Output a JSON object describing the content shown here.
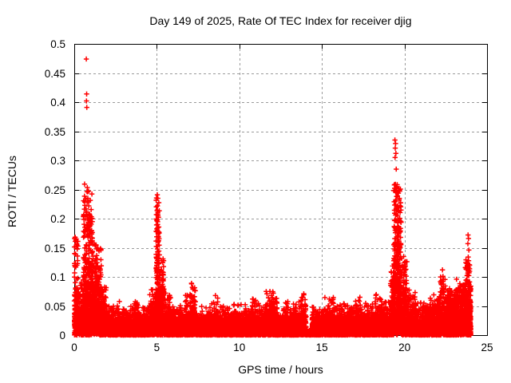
{
  "chart_data": {
    "type": "scatter",
    "title": "Day 149 of 2025, Rate Of TEC Index for receiver djig",
    "xlabel": "GPS time / hours",
    "ylabel": "ROTI / TECUs",
    "xlim": [
      0,
      25
    ],
    "ylim": [
      0,
      0.5
    ],
    "grid": true,
    "grid_style": "dashed",
    "legend": "none",
    "marker": "plus",
    "colors": {
      "points": "#ff0000",
      "grid": "#9a9a9a",
      "axis": "#000000",
      "text": "#000000",
      "background": "#ffffff"
    },
    "xticks": [
      {
        "v": 0,
        "label": "0"
      },
      {
        "v": 5,
        "label": "5"
      },
      {
        "v": 10,
        "label": "10"
      },
      {
        "v": 15,
        "label": "15"
      },
      {
        "v": 20,
        "label": "20"
      },
      {
        "v": 25,
        "label": "25"
      }
    ],
    "yticks": [
      {
        "v": 0,
        "label": "0"
      },
      {
        "v": 0.05,
        "label": "0.05"
      },
      {
        "v": 0.1,
        "label": "0.1"
      },
      {
        "v": 0.15,
        "label": "0.15"
      },
      {
        "v": 0.2,
        "label": "0.2"
      },
      {
        "v": 0.25,
        "label": "0.25"
      },
      {
        "v": 0.3,
        "label": "0.3"
      },
      {
        "v": 0.35,
        "label": "0.35"
      },
      {
        "v": 0.4,
        "label": "0.4"
      },
      {
        "v": 0.45,
        "label": "0.45"
      },
      {
        "v": 0.5,
        "label": "0.5"
      }
    ],
    "data_time_range_hours": [
      0,
      24
    ],
    "bin_format": [
      "t_start_hours",
      "t_end_hours",
      "envelope_max_roti",
      "density_points_per_0p01h",
      "spread_factor"
    ],
    "envelope_bins": [
      [
        0.0,
        0.25,
        0.17,
        7,
        3.0
      ],
      [
        0.25,
        0.55,
        0.1,
        6,
        4.0
      ],
      [
        0.55,
        1.1,
        0.26,
        9,
        2.8
      ],
      [
        1.1,
        1.65,
        0.16,
        8,
        3.2
      ],
      [
        1.65,
        2.0,
        0.09,
        7,
        4.0
      ],
      [
        2.0,
        2.55,
        0.055,
        6,
        4.5
      ],
      [
        2.55,
        2.8,
        0.065,
        6,
        4.5
      ],
      [
        2.8,
        3.6,
        0.05,
        6,
        4.5
      ],
      [
        3.6,
        4.0,
        0.06,
        6,
        4.5
      ],
      [
        4.0,
        4.55,
        0.05,
        6,
        4.5
      ],
      [
        4.55,
        4.95,
        0.08,
        6,
        4.0
      ],
      [
        4.95,
        5.15,
        0.24,
        10,
        2.2
      ],
      [
        5.15,
        5.45,
        0.14,
        7,
        3.2
      ],
      [
        5.45,
        5.85,
        0.075,
        6,
        4.0
      ],
      [
        5.85,
        6.7,
        0.055,
        6,
        4.5
      ],
      [
        6.7,
        7.0,
        0.07,
        6,
        4.2
      ],
      [
        7.0,
        7.35,
        0.09,
        6,
        3.5
      ],
      [
        7.35,
        8.3,
        0.05,
        6,
        4.5
      ],
      [
        8.3,
        8.7,
        0.065,
        6,
        4.5
      ],
      [
        8.7,
        10.6,
        0.055,
        6,
        4.5
      ],
      [
        10.6,
        11.0,
        0.065,
        6,
        4.5
      ],
      [
        11.0,
        11.6,
        0.055,
        6,
        4.5
      ],
      [
        11.6,
        12.3,
        0.075,
        7,
        4.0
      ],
      [
        12.3,
        13.6,
        0.058,
        6,
        4.5
      ],
      [
        13.6,
        14.05,
        0.07,
        6,
        4.0
      ],
      [
        14.05,
        14.4,
        0.012,
        2,
        4.5
      ],
      [
        14.4,
        15.1,
        0.05,
        6,
        4.5
      ],
      [
        15.1,
        15.75,
        0.065,
        6,
        4.2
      ],
      [
        15.75,
        16.6,
        0.055,
        6,
        4.5
      ],
      [
        16.6,
        17.0,
        0.06,
        6,
        4.5
      ],
      [
        17.0,
        17.5,
        0.065,
        6,
        4.2
      ],
      [
        17.5,
        18.2,
        0.055,
        6,
        4.5
      ],
      [
        18.2,
        18.6,
        0.07,
        6,
        4.2
      ],
      [
        18.6,
        19.15,
        0.06,
        6,
        4.5
      ],
      [
        19.15,
        19.35,
        0.12,
        7,
        3.0
      ],
      [
        19.35,
        19.8,
        0.26,
        9,
        2.5
      ],
      [
        19.8,
        20.15,
        0.14,
        7,
        3.0
      ],
      [
        20.15,
        20.7,
        0.08,
        6,
        4.0
      ],
      [
        20.7,
        21.5,
        0.06,
        7,
        4.5
      ],
      [
        21.5,
        22.1,
        0.07,
        7,
        4.0
      ],
      [
        22.1,
        22.5,
        0.1,
        7,
        3.5
      ],
      [
        22.5,
        23.2,
        0.08,
        9,
        3.3
      ],
      [
        23.2,
        23.65,
        0.09,
        9,
        3.0
      ],
      [
        23.65,
        23.95,
        0.13,
        9,
        3.0
      ],
      [
        23.95,
        24.02,
        0.085,
        14,
        2.2
      ]
    ],
    "peak_points": [
      [
        0.73,
        0.474
      ],
      [
        0.75,
        0.414
      ],
      [
        0.74,
        0.402
      ],
      [
        0.76,
        0.391
      ],
      [
        0.82,
        0.235
      ],
      [
        0.78,
        0.228
      ],
      [
        0.88,
        0.222
      ],
      [
        0.92,
        0.208
      ],
      [
        0.85,
        0.199
      ],
      [
        0.95,
        0.193
      ],
      [
        1.3,
        0.155
      ],
      [
        1.35,
        0.148
      ],
      [
        0.05,
        0.168
      ],
      [
        0.1,
        0.152
      ],
      [
        0.08,
        0.139
      ],
      [
        5.03,
        0.241
      ],
      [
        5.06,
        0.235
      ],
      [
        5.04,
        0.222
      ],
      [
        5.07,
        0.205
      ],
      [
        5.05,
        0.19
      ],
      [
        5.02,
        0.178
      ],
      [
        5.08,
        0.165
      ],
      [
        5.04,
        0.152
      ],
      [
        7.1,
        0.089
      ],
      [
        7.15,
        0.082
      ],
      [
        8.55,
        0.068
      ],
      [
        10.8,
        0.062
      ],
      [
        11.85,
        0.075
      ],
      [
        11.95,
        0.068
      ],
      [
        13.9,
        0.071
      ],
      [
        15.45,
        0.062
      ],
      [
        17.3,
        0.065
      ],
      [
        19.42,
        0.335
      ],
      [
        19.46,
        0.329
      ],
      [
        19.44,
        0.321
      ],
      [
        19.48,
        0.312
      ],
      [
        19.43,
        0.305
      ],
      [
        19.5,
        0.285
      ],
      [
        19.4,
        0.252
      ],
      [
        19.47,
        0.245
      ],
      [
        19.52,
        0.238
      ],
      [
        19.45,
        0.23
      ],
      [
        19.55,
        0.218
      ],
      [
        19.5,
        0.207
      ],
      [
        19.58,
        0.196
      ],
      [
        19.62,
        0.182
      ],
      [
        19.6,
        0.17
      ],
      [
        19.65,
        0.158
      ],
      [
        19.7,
        0.143
      ],
      [
        19.72,
        0.13
      ],
      [
        19.95,
        0.135
      ],
      [
        20.0,
        0.125
      ],
      [
        22.3,
        0.112
      ],
      [
        22.33,
        0.101
      ],
      [
        22.28,
        0.092
      ],
      [
        23.15,
        0.096
      ],
      [
        23.85,
        0.172
      ],
      [
        23.88,
        0.166
      ],
      [
        23.84,
        0.157
      ],
      [
        23.9,
        0.146
      ],
      [
        23.86,
        0.134
      ],
      [
        23.91,
        0.121
      ],
      [
        23.88,
        0.111
      ],
      [
        23.83,
        0.103
      ],
      [
        24.0,
        0.084
      ]
    ]
  }
}
